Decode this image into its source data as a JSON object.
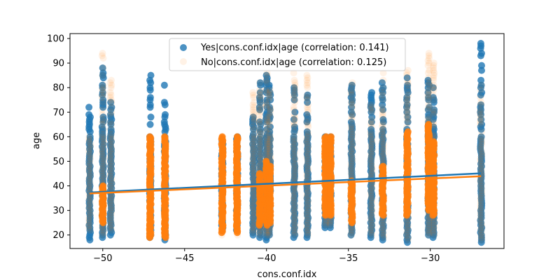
{
  "chart_data": {
    "type": "scatter",
    "title": "",
    "xlabel": "cons.conf.idx",
    "ylabel": "age",
    "xlim": [
      -52,
      -25.5
    ],
    "ylim": [
      14.5,
      102
    ],
    "xticks": [
      -50,
      -45,
      -40,
      -35,
      -30
    ],
    "xtick_labels": [
      "−50",
      "−45",
      "−40",
      "−35",
      "−30"
    ],
    "yticks": [
      20,
      30,
      40,
      50,
      60,
      70,
      80,
      90,
      100
    ],
    "ytick_labels": [
      "20",
      "30",
      "40",
      "50",
      "60",
      "70",
      "80",
      "90",
      "100"
    ],
    "grid": false,
    "legend_position": "top-center",
    "series": [
      {
        "name": "Yes|cons.conf.idx|age (correlation: 0.141)",
        "color": "#1f77b4",
        "opacity": 0.8,
        "columns": [
          {
            "x": -50.8,
            "ymin": 18,
            "ymax": 73
          },
          {
            "x": -50.0,
            "ymin": 19,
            "ymax": 88
          },
          {
            "x": -49.5,
            "ymin": 20,
            "ymax": 74
          },
          {
            "x": -47.1,
            "ymin": 19,
            "ymax": 85
          },
          {
            "x": -46.2,
            "ymin": 18,
            "ymax": 81
          },
          {
            "x": -42.7,
            "ymin": 22,
            "ymax": 58
          },
          {
            "x": -41.8,
            "ymin": 22,
            "ymax": 60
          },
          {
            "x": -40.8,
            "ymin": 20,
            "ymax": 70
          },
          {
            "x": -40.4,
            "ymin": 19,
            "ymax": 83
          },
          {
            "x": -40.0,
            "ymin": 18,
            "ymax": 85
          },
          {
            "x": -39.8,
            "ymin": 20,
            "ymax": 82
          },
          {
            "x": -38.3,
            "ymin": 19,
            "ymax": 80
          },
          {
            "x": -37.5,
            "ymin": 19,
            "ymax": 77
          },
          {
            "x": -36.4,
            "ymin": 23,
            "ymax": 60
          },
          {
            "x": -36.1,
            "ymin": 23,
            "ymax": 60
          },
          {
            "x": -34.8,
            "ymin": 20,
            "ymax": 82
          },
          {
            "x": -33.6,
            "ymin": 19,
            "ymax": 78
          },
          {
            "x": -32.9,
            "ymin": 18,
            "ymax": 82
          },
          {
            "x": -31.4,
            "ymin": 17,
            "ymax": 86
          },
          {
            "x": -30.1,
            "ymin": 20,
            "ymax": 83
          },
          {
            "x": -29.8,
            "ymin": 19,
            "ymax": 81
          },
          {
            "x": -26.9,
            "ymin": 17,
            "ymax": 98
          }
        ],
        "trend": {
          "x": [
            -50.8,
            -26.9
          ],
          "y": [
            37.3,
            45.1
          ]
        }
      },
      {
        "name": "No|cons.conf.idx|age (correlation: 0.125)",
        "color": "#ff7f0e",
        "opacity": 0.1,
        "columns": [
          {
            "x": -50.8,
            "ymin": 22,
            "ymax": 62
          },
          {
            "x": -50.0,
            "ymin": 20,
            "ymax": 95
          },
          {
            "x": -49.5,
            "ymin": 22,
            "ymax": 84
          },
          {
            "x": -47.1,
            "ymin": 19,
            "ymax": 60
          },
          {
            "x": -46.2,
            "ymin": 19,
            "ymax": 60
          },
          {
            "x": -42.7,
            "ymin": 20,
            "ymax": 60
          },
          {
            "x": -41.8,
            "ymin": 20,
            "ymax": 60
          },
          {
            "x": -40.8,
            "ymin": 21,
            "ymax": 78
          },
          {
            "x": -40.4,
            "ymin": 20,
            "ymax": 82
          },
          {
            "x": -40.0,
            "ymin": 20,
            "ymax": 86
          },
          {
            "x": -39.8,
            "ymin": 20,
            "ymax": 79
          },
          {
            "x": -38.3,
            "ymin": 20,
            "ymax": 86
          },
          {
            "x": -37.5,
            "ymin": 20,
            "ymax": 85
          },
          {
            "x": -36.4,
            "ymin": 24,
            "ymax": 60
          },
          {
            "x": -36.1,
            "ymin": 24,
            "ymax": 60
          },
          {
            "x": -34.8,
            "ymin": 20,
            "ymax": 82
          },
          {
            "x": -33.6,
            "ymin": 20,
            "ymax": 73
          },
          {
            "x": -32.9,
            "ymin": 19,
            "ymax": 86
          },
          {
            "x": -31.4,
            "ymin": 18,
            "ymax": 87
          },
          {
            "x": -30.1,
            "ymin": 20,
            "ymax": 94
          },
          {
            "x": -29.8,
            "ymin": 20,
            "ymax": 91
          },
          {
            "x": -26.9,
            "ymin": 18,
            "ymax": 81
          }
        ],
        "dense_bands": [
          {
            "x": -47.1,
            "ymin": 19,
            "ymax": 60
          },
          {
            "x": -46.2,
            "ymin": 19,
            "ymax": 60
          },
          {
            "x": -42.7,
            "ymin": 21,
            "ymax": 60
          },
          {
            "x": -41.8,
            "ymin": 21,
            "ymax": 60
          },
          {
            "x": -36.4,
            "ymin": 28,
            "ymax": 60
          },
          {
            "x": -36.1,
            "ymin": 28,
            "ymax": 60
          },
          {
            "x": -50.0,
            "ymin": 25,
            "ymax": 40
          },
          {
            "x": -40.4,
            "ymin": 24,
            "ymax": 45
          },
          {
            "x": -40.0,
            "ymin": 24,
            "ymax": 50
          },
          {
            "x": -39.8,
            "ymin": 25,
            "ymax": 48
          },
          {
            "x": -31.4,
            "ymin": 28,
            "ymax": 62
          },
          {
            "x": -30.1,
            "ymin": 30,
            "ymax": 65
          },
          {
            "x": -29.8,
            "ymin": 28,
            "ymax": 58
          },
          {
            "x": -34.8,
            "ymin": 25,
            "ymax": 42
          },
          {
            "x": -32.9,
            "ymin": 28,
            "ymax": 48
          }
        ],
        "trend": {
          "x": [
            -50.8,
            -26.9
          ],
          "y": [
            36.9,
            43.9
          ]
        }
      }
    ]
  }
}
